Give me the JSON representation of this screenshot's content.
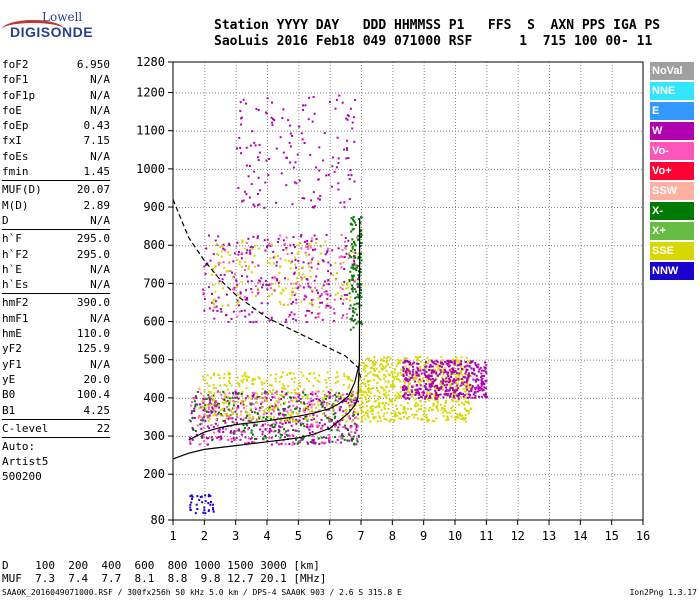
{
  "logo": {
    "brand_top": "Lowell",
    "brand_bottom": "DIGISONDE"
  },
  "header": {
    "line1": "Station YYYY DAY   DDD HHMMSS P1   FFS  S  AXN PPS IGA PS",
    "line2": "SaoLuis 2016 Feb18 049 071000 RSF      1  715 100 00- 11"
  },
  "params": [
    {
      "k": "foF2",
      "v": "6.950"
    },
    {
      "k": "foF1",
      "v": "N/A"
    },
    {
      "k": "foF1p",
      "v": "N/A"
    },
    {
      "k": "foE",
      "v": "N/A"
    },
    {
      "k": "foEp",
      "v": "0.43"
    },
    {
      "k": "fxI",
      "v": "7.15"
    },
    {
      "k": "foEs",
      "v": "N/A"
    },
    {
      "k": "fmin",
      "v": "1.45"
    },
    {
      "sep": true
    },
    {
      "k": "MUF(D)",
      "v": "20.07"
    },
    {
      "k": "M(D)",
      "v": "2.89"
    },
    {
      "k": "D",
      "v": "N/A"
    },
    {
      "sep": true
    },
    {
      "k": "h`F",
      "v": "295.0"
    },
    {
      "k": "h`F2",
      "v": "295.0"
    },
    {
      "k": "h`E",
      "v": "N/A"
    },
    {
      "k": "h`Es",
      "v": "N/A"
    },
    {
      "sep": true
    },
    {
      "k": "hmF2",
      "v": "390.0"
    },
    {
      "k": "hmF1",
      "v": "N/A"
    },
    {
      "k": "hmE",
      "v": "110.0"
    },
    {
      "k": "yF2",
      "v": "125.9"
    },
    {
      "k": "yF1",
      "v": "N/A"
    },
    {
      "k": "yE",
      "v": "20.0"
    },
    {
      "k": "B0",
      "v": "100.4"
    },
    {
      "k": "B1",
      "v": "4.25"
    },
    {
      "sep": true
    },
    {
      "k": "C-level",
      "v": "22"
    },
    {
      "sep": true
    }
  ],
  "auto": {
    "line1": "Auto:",
    "line2": "Artist5",
    "line3": "500200"
  },
  "dmuf": {
    "line1": "D    100  200  400  600  800 1000 1500 3000 [km]",
    "line2": "MUF  7.3  7.4  7.7  8.1  8.8  9.8 12.7 20.1 [MHz]"
  },
  "footer": {
    "left": "SAA0K_2016049071000.RSF / 300fx256h 50 kHz 5.0 km / DPS-4 SAA0K 903 / 2.6 S 315.8 E",
    "right": "Ion2Png 1.3.17"
  },
  "legend": [
    {
      "label": "NoVal",
      "color": "#a0a0a0"
    },
    {
      "label": "NNE",
      "color": "#33e6ff"
    },
    {
      "label": "E",
      "color": "#3399ff"
    },
    {
      "label": "W",
      "color": "#b000b0"
    },
    {
      "label": "Vo-",
      "color": "#ff55bb"
    },
    {
      "label": "Vo+",
      "color": "#ff0033"
    },
    {
      "label": "SSW",
      "color": "#ffb0a0"
    },
    {
      "label": "X-",
      "color": "#007a00"
    },
    {
      "label": "X+",
      "color": "#66bb44"
    },
    {
      "label": "SSE",
      "color": "#d8d800"
    },
    {
      "label": "NNW",
      "color": "#1a00cc"
    }
  ],
  "chart_data": {
    "type": "scatter",
    "xlim": [
      1,
      16
    ],
    "ylim": [
      80,
      1280
    ],
    "x_ticks": [
      "1",
      "2",
      "3",
      "4",
      "5",
      "6",
      "7",
      "8",
      "9",
      "10",
      "11",
      "12",
      "13",
      "14",
      "15",
      "16"
    ],
    "y_ticks": [
      "80",
      "200",
      "300",
      "400",
      "500",
      "600",
      "700",
      "800",
      "900",
      "1000",
      "1100",
      "1200",
      "1280"
    ],
    "grid": true,
    "trace_o": {
      "x": [
        1.5,
        2,
        2.5,
        3,
        3.5,
        4,
        4.5,
        5,
        5.5,
        6,
        6.3,
        6.6,
        6.8,
        6.95
      ],
      "y": [
        290,
        310,
        322,
        330,
        335,
        340,
        346,
        352,
        360,
        372,
        385,
        405,
        440,
        490
      ]
    },
    "profile": {
      "x": [
        1,
        1.5,
        2,
        2.5,
        3,
        3.5,
        4,
        4.5,
        5,
        5.5,
        6,
        6.3,
        6.6,
        6.8,
        6.9,
        6.95,
        6.96
      ],
      "y": [
        240,
        255,
        265,
        270,
        275,
        280,
        285,
        290,
        295,
        305,
        320,
        340,
        360,
        380,
        400,
        500,
        870
      ]
    },
    "dashed": {
      "x": [
        1,
        1.5,
        2,
        2.5,
        3,
        3.5,
        4,
        4.5,
        5,
        5.5,
        6,
        6.5,
        6.9,
        7
      ],
      "y": [
        920,
        820,
        760,
        710,
        670,
        640,
        610,
        590,
        570,
        550,
        530,
        510,
        480,
        450
      ]
    },
    "dots": [
      {
        "x0": 1.9,
        "x1": 6.9,
        "y0": 600,
        "y1": 830,
        "n": 260,
        "color": "#b000b0"
      },
      {
        "x0": 1.9,
        "x1": 6.9,
        "y0": 610,
        "y1": 830,
        "n": 90,
        "color": "#ff55bb"
      },
      {
        "x0": 2.2,
        "x1": 6.9,
        "y0": 640,
        "y1": 820,
        "n": 150,
        "color": "#d8d800"
      },
      {
        "x0": 3,
        "x1": 6.9,
        "y0": 900,
        "y1": 1200,
        "n": 150,
        "color": "#b000b0"
      },
      {
        "x0": 1.5,
        "x1": 6.9,
        "y0": 280,
        "y1": 420,
        "n": 380,
        "color": "#b000b0"
      },
      {
        "x0": 1.5,
        "x1": 6.9,
        "y0": 280,
        "y1": 420,
        "n": 200,
        "color": "#ff55bb"
      },
      {
        "x0": 1.5,
        "x1": 6.9,
        "y0": 280,
        "y1": 420,
        "n": 180,
        "color": "#007a00"
      },
      {
        "x0": 1.8,
        "x1": 6.9,
        "y0": 340,
        "y1": 470,
        "n": 320,
        "color": "#d8d800"
      },
      {
        "x0": 6.9,
        "x1": 10.5,
        "y0": 340,
        "y1": 510,
        "n": 650,
        "color": "#d8d800"
      },
      {
        "x0": 8.3,
        "x1": 11,
        "y0": 400,
        "y1": 500,
        "n": 450,
        "color": "#b000b0"
      },
      {
        "x0": 6.6,
        "x1": 7,
        "y0": 580,
        "y1": 880,
        "n": 120,
        "color": "#007a00"
      },
      {
        "x0": 1.5,
        "x1": 2.3,
        "y0": 100,
        "y1": 150,
        "n": 35,
        "color": "#1a00cc"
      }
    ]
  }
}
